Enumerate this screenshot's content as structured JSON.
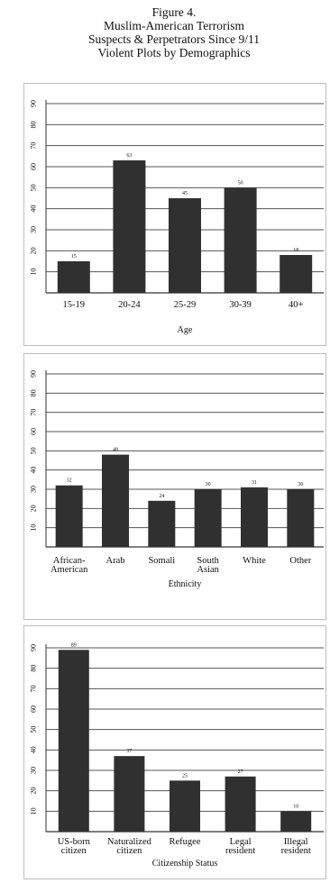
{
  "title_lines": [
    "Figure 4.",
    "Muslim-American Terrorism",
    "Suspects & Perpetrators Since 9/11",
    "Violent Plots by Demographics"
  ],
  "colors": {
    "bar": "#303030",
    "gridline": "#555555",
    "axis": "#333333"
  },
  "chart_data": [
    {
      "type": "bar",
      "xlabel": "Age",
      "ylabel": "",
      "ylim": [
        0,
        90
      ],
      "yticks": [
        "10",
        "20",
        "30",
        "40",
        "50",
        "60",
        "70",
        "80",
        "90"
      ],
      "grid": true,
      "categories": [
        "15-19",
        "20-24",
        "25-29",
        "30-39",
        "40+"
      ],
      "values": [
        15,
        63,
        45,
        50,
        18
      ],
      "data_labels": [
        "15",
        "63",
        "45",
        "50",
        "18"
      ]
    },
    {
      "type": "bar",
      "xlabel": "Ethnicity",
      "ylabel": "",
      "ylim": [
        0,
        90
      ],
      "yticks": [
        "10",
        "20",
        "30",
        "40",
        "50",
        "60",
        "70",
        "80",
        "90"
      ],
      "grid": true,
      "categories": [
        "African-\nAmerican",
        "Arab",
        "Somali",
        "South\nAsian",
        "White",
        "Other"
      ],
      "values": [
        32,
        48,
        24,
        30,
        31,
        30
      ],
      "data_labels": [
        "32",
        "48",
        "24",
        "30",
        "31",
        "30"
      ]
    },
    {
      "type": "bar",
      "xlabel": "Citizenship Status",
      "ylabel": "",
      "ylim": [
        0,
        90
      ],
      "yticks": [
        "10",
        "20",
        "30",
        "40",
        "50",
        "60",
        "70",
        "80",
        "90"
      ],
      "grid": true,
      "categories": [
        "US-born\ncitizen",
        "Naturalized\ncitizen",
        "Refugee",
        "Legal\nresident",
        "Illegal\nresident"
      ],
      "values": [
        89,
        37,
        25,
        27,
        10
      ],
      "data_labels": [
        "89",
        "37",
        "25",
        "27",
        "10"
      ]
    }
  ]
}
